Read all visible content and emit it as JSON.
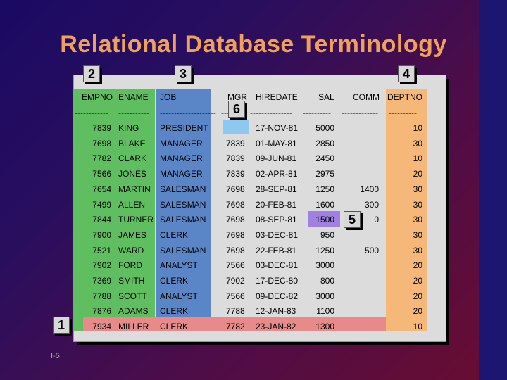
{
  "slide": {
    "title": "Relational Database Terminology",
    "page_number": "I-5"
  },
  "callouts": [
    "1",
    "2",
    "3",
    "4",
    "5",
    "6"
  ],
  "table": {
    "headers": [
      "EMPNO",
      "ENAME",
      "JOB",
      "MGR",
      "HIREDATE",
      "SAL",
      "COMM",
      "DEPTNO"
    ],
    "dashes": [
      "------------",
      "-----------",
      "--------------------",
      "------",
      "---------------",
      "----------",
      "-------------",
      "----------"
    ],
    "rows": [
      [
        "7839",
        "KING",
        "PRESIDENT",
        "",
        "17-NOV-81",
        "5000",
        "",
        "10"
      ],
      [
        "7698",
        "BLAKE",
        "MANAGER",
        "7839",
        "01-MAY-81",
        "2850",
        "",
        "30"
      ],
      [
        "7782",
        "CLARK",
        "MANAGER",
        "7839",
        "09-JUN-81",
        "2450",
        "",
        "10"
      ],
      [
        "7566",
        "JONES",
        "MANAGER",
        "7839",
        "02-APR-81",
        "2975",
        "",
        "20"
      ],
      [
        "7654",
        "MARTIN",
        "SALESMAN",
        "7698",
        "28-SEP-81",
        "1250",
        "1400",
        "30"
      ],
      [
        "7499",
        "ALLEN",
        "SALESMAN",
        "7698",
        "20-FEB-81",
        "1600",
        "300",
        "30"
      ],
      [
        "7844",
        "TURNER",
        "SALESMAN",
        "7698",
        "08-SEP-81",
        "1500",
        "0",
        "30"
      ],
      [
        "7900",
        "JAMES",
        "CLERK",
        "7698",
        "03-DEC-81",
        "950",
        "",
        "30"
      ],
      [
        "7521",
        "WARD",
        "SALESMAN",
        "7698",
        "22-FEB-81",
        "1250",
        "500",
        "30"
      ],
      [
        "7902",
        "FORD",
        "ANALYST",
        "7566",
        "03-DEC-81",
        "3000",
        "",
        "20"
      ],
      [
        "7369",
        "SMITH",
        "CLERK",
        "7902",
        "17-DEC-80",
        "800",
        "",
        "20"
      ],
      [
        "7788",
        "SCOTT",
        "ANALYST",
        "7566",
        "09-DEC-82",
        "3000",
        "",
        "20"
      ],
      [
        "7876",
        "ADAMS",
        "CLERK",
        "7788",
        "12-JAN-83",
        "1100",
        "",
        "20"
      ],
      [
        "7934",
        "MILLER",
        "CLERK",
        "7782",
        "23-JAN-82",
        "1300",
        "",
        "10"
      ]
    ]
  }
}
